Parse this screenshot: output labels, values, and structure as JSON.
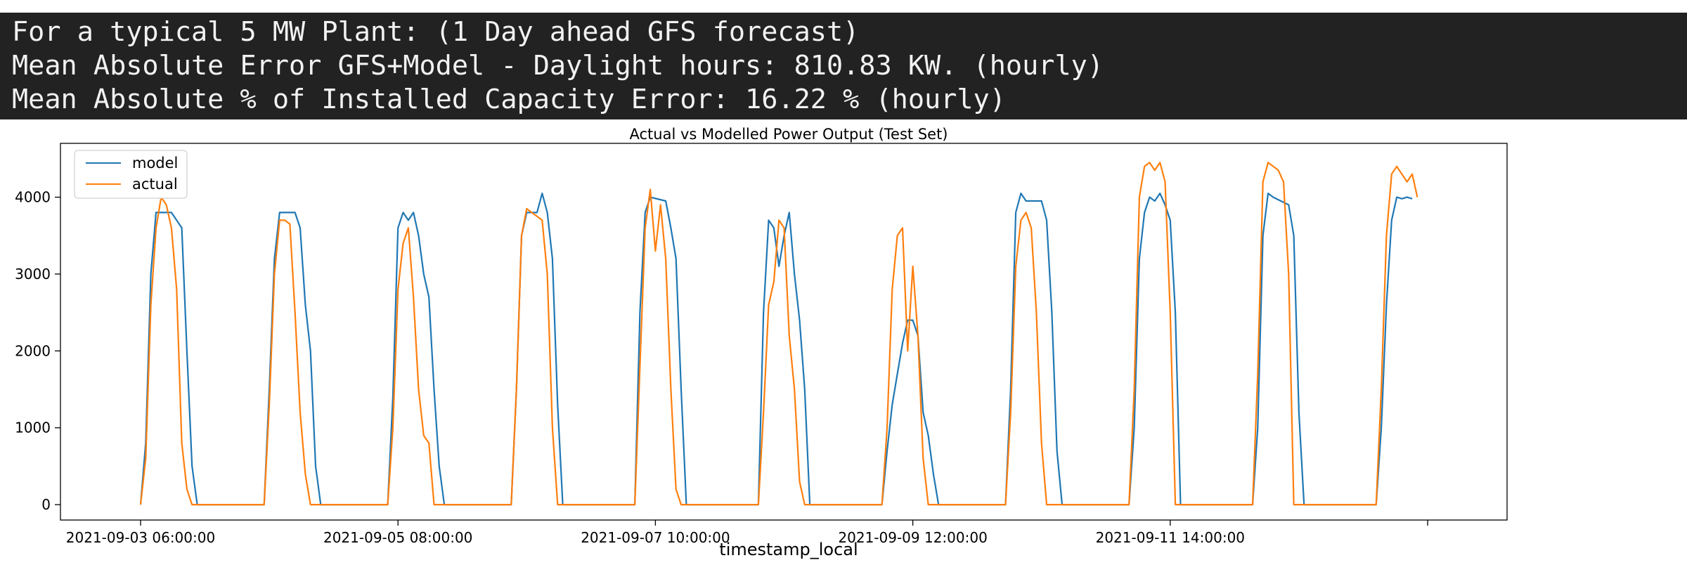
{
  "console": {
    "lines": [
      "For a typical 5 MW Plant: (1 Day ahead GFS forecast)",
      "Mean Absolute Error GFS+Model - Daylight hours: 810.83 KW. (hourly)",
      "Mean Absolute % of Installed Capacity Error: 16.22 % (hourly)"
    ]
  },
  "chart_data": {
    "type": "line",
    "title": "Actual vs Modelled Power Output (Test Set)",
    "xlabel": "timestamp_local",
    "ylabel": "",
    "x_start": "2021-09-03 06:00:00",
    "x_end": "2021-09-13 19:00:00",
    "x_ticks": [
      "2021-09-03 06:00:00",
      "2021-09-05 08:00:00",
      "2021-09-07 10:00:00",
      "2021-09-09 12:00:00",
      "2021-09-11 14:00:00",
      ""
    ],
    "y_ticks": [
      0,
      1000,
      2000,
      3000,
      4000
    ],
    "ylim": [
      -200,
      4700
    ],
    "grid": false,
    "legend": "upper-left",
    "colors": {
      "model": "#1f77b4",
      "actual": "#ff7f0e"
    },
    "series": [
      {
        "name": "model",
        "color": "#1f77b4",
        "points": [
          [
            "2021-09-03 06:00",
            0
          ],
          [
            "2021-09-03 07:00",
            800
          ],
          [
            "2021-09-03 08:00",
            3000
          ],
          [
            "2021-09-03 09:00",
            3800
          ],
          [
            "2021-09-03 12:00",
            3800
          ],
          [
            "2021-09-03 14:00",
            3600
          ],
          [
            "2021-09-03 15:00",
            2000
          ],
          [
            "2021-09-03 16:00",
            500
          ],
          [
            "2021-09-03 17:00",
            0
          ],
          [
            "2021-09-04 06:00",
            0
          ],
          [
            "2021-09-04 07:00",
            1500
          ],
          [
            "2021-09-04 08:00",
            3200
          ],
          [
            "2021-09-04 09:00",
            3800
          ],
          [
            "2021-09-04 12:00",
            3800
          ],
          [
            "2021-09-04 13:00",
            3600
          ],
          [
            "2021-09-04 14:00",
            2600
          ],
          [
            "2021-09-04 15:00",
            2000
          ],
          [
            "2021-09-04 16:00",
            500
          ],
          [
            "2021-09-04 17:00",
            0
          ],
          [
            "2021-09-05 06:00",
            0
          ],
          [
            "2021-09-05 07:00",
            1400
          ],
          [
            "2021-09-05 08:00",
            3600
          ],
          [
            "2021-09-05 09:00",
            3800
          ],
          [
            "2021-09-05 10:00",
            3700
          ],
          [
            "2021-09-05 11:00",
            3800
          ],
          [
            "2021-09-05 12:00",
            3500
          ],
          [
            "2021-09-05 13:00",
            3000
          ],
          [
            "2021-09-05 14:00",
            2700
          ],
          [
            "2021-09-05 15:00",
            1500
          ],
          [
            "2021-09-05 16:00",
            500
          ],
          [
            "2021-09-05 17:00",
            0
          ],
          [
            "2021-09-06 06:00",
            0
          ],
          [
            "2021-09-06 07:00",
            1500
          ],
          [
            "2021-09-06 08:00",
            3500
          ],
          [
            "2021-09-06 09:00",
            3800
          ],
          [
            "2021-09-06 11:00",
            3800
          ],
          [
            "2021-09-06 12:00",
            4050
          ],
          [
            "2021-09-06 13:00",
            3800
          ],
          [
            "2021-09-06 14:00",
            3200
          ],
          [
            "2021-09-06 15:00",
            1300
          ],
          [
            "2021-09-06 16:00",
            0
          ],
          [
            "2021-09-07 06:00",
            0
          ],
          [
            "2021-09-07 07:00",
            2500
          ],
          [
            "2021-09-07 08:00",
            3800
          ],
          [
            "2021-09-07 09:00",
            4000
          ],
          [
            "2021-09-07 12:00",
            3950
          ],
          [
            "2021-09-07 13:00",
            3600
          ],
          [
            "2021-09-07 14:00",
            3200
          ],
          [
            "2021-09-07 15:00",
            1500
          ],
          [
            "2021-09-07 16:00",
            0
          ],
          [
            "2021-09-08 06:00",
            0
          ],
          [
            "2021-09-08 07:00",
            2500
          ],
          [
            "2021-09-08 08:00",
            3700
          ],
          [
            "2021-09-08 09:00",
            3600
          ],
          [
            "2021-09-08 10:00",
            3100
          ],
          [
            "2021-09-08 11:00",
            3500
          ],
          [
            "2021-09-08 12:00",
            3800
          ],
          [
            "2021-09-08 13:00",
            3000
          ],
          [
            "2021-09-08 14:00",
            2400
          ],
          [
            "2021-09-08 15:00",
            1500
          ],
          [
            "2021-09-08 16:00",
            0
          ],
          [
            "2021-09-09 06:00",
            0
          ],
          [
            "2021-09-09 07:00",
            700
          ],
          [
            "2021-09-09 08:00",
            1300
          ],
          [
            "2021-09-09 09:00",
            1700
          ],
          [
            "2021-09-09 10:00",
            2100
          ],
          [
            "2021-09-09 11:00",
            2400
          ],
          [
            "2021-09-09 12:00",
            2400
          ],
          [
            "2021-09-09 13:00",
            2200
          ],
          [
            "2021-09-09 14:00",
            1200
          ],
          [
            "2021-09-09 15:00",
            900
          ],
          [
            "2021-09-09 16:00",
            400
          ],
          [
            "2021-09-09 17:00",
            0
          ],
          [
            "2021-09-10 06:00",
            0
          ],
          [
            "2021-09-10 07:00",
            1500
          ],
          [
            "2021-09-10 08:00",
            3800
          ],
          [
            "2021-09-10 09:00",
            4050
          ],
          [
            "2021-09-10 10:00",
            3950
          ],
          [
            "2021-09-10 13:00",
            3950
          ],
          [
            "2021-09-10 14:00",
            3700
          ],
          [
            "2021-09-10 15:00",
            2500
          ],
          [
            "2021-09-10 16:00",
            700
          ],
          [
            "2021-09-10 17:00",
            0
          ],
          [
            "2021-09-11 06:00",
            0
          ],
          [
            "2021-09-11 07:00",
            1000
          ],
          [
            "2021-09-11 08:00",
            3200
          ],
          [
            "2021-09-11 09:00",
            3800
          ],
          [
            "2021-09-11 10:00",
            4000
          ],
          [
            "2021-09-11 11:00",
            3950
          ],
          [
            "2021-09-11 12:00",
            4050
          ],
          [
            "2021-09-11 13:00",
            3900
          ],
          [
            "2021-09-11 14:00",
            3700
          ],
          [
            "2021-09-11 15:00",
            2500
          ],
          [
            "2021-09-11 16:00",
            0
          ],
          [
            "2021-09-12 06:00",
            0
          ],
          [
            "2021-09-12 07:00",
            1000
          ],
          [
            "2021-09-12 08:00",
            3500
          ],
          [
            "2021-09-12 09:00",
            4050
          ],
          [
            "2021-09-12 10:00",
            4000
          ],
          [
            "2021-09-12 13:00",
            3900
          ],
          [
            "2021-09-12 14:00",
            3500
          ],
          [
            "2021-09-12 15:00",
            1200
          ],
          [
            "2021-09-12 16:00",
            0
          ],
          [
            "2021-09-13 06:00",
            0
          ],
          [
            "2021-09-13 07:00",
            1000
          ],
          [
            "2021-09-13 08:00",
            2600
          ],
          [
            "2021-09-13 09:00",
            3700
          ],
          [
            "2021-09-13 10:00",
            4000
          ],
          [
            "2021-09-13 11:00",
            3980
          ],
          [
            "2021-09-13 12:00",
            4000
          ],
          [
            "2021-09-13 13:00",
            3980
          ]
        ]
      },
      {
        "name": "actual",
        "color": "#ff7f0e",
        "points": [
          [
            "2021-09-03 06:00",
            0
          ],
          [
            "2021-09-03 07:00",
            600
          ],
          [
            "2021-09-03 08:00",
            2600
          ],
          [
            "2021-09-03 09:00",
            3600
          ],
          [
            "2021-09-03 10:00",
            4000
          ],
          [
            "2021-09-03 11:00",
            3900
          ],
          [
            "2021-09-03 12:00",
            3600
          ],
          [
            "2021-09-03 13:00",
            2800
          ],
          [
            "2021-09-03 14:00",
            800
          ],
          [
            "2021-09-03 15:00",
            200
          ],
          [
            "2021-09-03 16:00",
            0
          ],
          [
            "2021-09-04 06:00",
            0
          ],
          [
            "2021-09-04 07:00",
            1300
          ],
          [
            "2021-09-04 08:00",
            3000
          ],
          [
            "2021-09-04 09:00",
            3700
          ],
          [
            "2021-09-04 10:00",
            3700
          ],
          [
            "2021-09-04 11:00",
            3650
          ],
          [
            "2021-09-04 12:00",
            2500
          ],
          [
            "2021-09-04 13:00",
            1200
          ],
          [
            "2021-09-04 14:00",
            400
          ],
          [
            "2021-09-04 15:00",
            0
          ],
          [
            "2021-09-05 06:00",
            0
          ],
          [
            "2021-09-05 07:00",
            1000
          ],
          [
            "2021-09-05 08:00",
            2800
          ],
          [
            "2021-09-05 09:00",
            3400
          ],
          [
            "2021-09-05 10:00",
            3600
          ],
          [
            "2021-09-05 11:00",
            2700
          ],
          [
            "2021-09-05 12:00",
            1500
          ],
          [
            "2021-09-05 13:00",
            900
          ],
          [
            "2021-09-05 14:00",
            800
          ],
          [
            "2021-09-05 15:00",
            0
          ],
          [
            "2021-09-06 06:00",
            0
          ],
          [
            "2021-09-06 07:00",
            1500
          ],
          [
            "2021-09-06 08:00",
            3500
          ],
          [
            "2021-09-06 09:00",
            3850
          ],
          [
            "2021-09-06 11:00",
            3750
          ],
          [
            "2021-09-06 12:00",
            3700
          ],
          [
            "2021-09-06 13:00",
            3000
          ],
          [
            "2021-09-06 14:00",
            1000
          ],
          [
            "2021-09-06 15:00",
            0
          ],
          [
            "2021-09-07 06:00",
            0
          ],
          [
            "2021-09-07 07:00",
            1800
          ],
          [
            "2021-09-07 08:00",
            3600
          ],
          [
            "2021-09-07 09:00",
            4100
          ],
          [
            "2021-09-07 10:00",
            3300
          ],
          [
            "2021-09-07 11:00",
            3900
          ],
          [
            "2021-09-07 12:00",
            3200
          ],
          [
            "2021-09-07 13:00",
            1500
          ],
          [
            "2021-09-07 14:00",
            200
          ],
          [
            "2021-09-07 15:00",
            0
          ],
          [
            "2021-09-08 06:00",
            0
          ],
          [
            "2021-09-08 07:00",
            1200
          ],
          [
            "2021-09-08 08:00",
            2600
          ],
          [
            "2021-09-08 09:00",
            2900
          ],
          [
            "2021-09-08 10:00",
            3700
          ],
          [
            "2021-09-08 11:00",
            3600
          ],
          [
            "2021-09-08 12:00",
            2200
          ],
          [
            "2021-09-08 13:00",
            1500
          ],
          [
            "2021-09-08 14:00",
            300
          ],
          [
            "2021-09-08 15:00",
            0
          ],
          [
            "2021-09-09 06:00",
            0
          ],
          [
            "2021-09-09 07:00",
            1000
          ],
          [
            "2021-09-09 08:00",
            2800
          ],
          [
            "2021-09-09 09:00",
            3500
          ],
          [
            "2021-09-09 10:00",
            3600
          ],
          [
            "2021-09-09 11:00",
            2000
          ],
          [
            "2021-09-09 12:00",
            3100
          ],
          [
            "2021-09-09 13:00",
            2200
          ],
          [
            "2021-09-09 14:00",
            600
          ],
          [
            "2021-09-09 15:00",
            0
          ],
          [
            "2021-09-10 06:00",
            0
          ],
          [
            "2021-09-10 07:00",
            1200
          ],
          [
            "2021-09-10 08:00",
            3100
          ],
          [
            "2021-09-10 09:00",
            3700
          ],
          [
            "2021-09-10 10:00",
            3800
          ],
          [
            "2021-09-10 11:00",
            3600
          ],
          [
            "2021-09-10 12:00",
            2500
          ],
          [
            "2021-09-10 13:00",
            800
          ],
          [
            "2021-09-10 14:00",
            0
          ],
          [
            "2021-09-11 06:00",
            0
          ],
          [
            "2021-09-11 07:00",
            1500
          ],
          [
            "2021-09-11 08:00",
            4000
          ],
          [
            "2021-09-11 09:00",
            4400
          ],
          [
            "2021-09-11 10:00",
            4450
          ],
          [
            "2021-09-11 11:00",
            4350
          ],
          [
            "2021-09-11 12:00",
            4450
          ],
          [
            "2021-09-11 13:00",
            4200
          ],
          [
            "2021-09-11 14:00",
            2500
          ],
          [
            "2021-09-11 15:00",
            0
          ],
          [
            "2021-09-12 06:00",
            0
          ],
          [
            "2021-09-12 07:00",
            1700
          ],
          [
            "2021-09-12 08:00",
            4200
          ],
          [
            "2021-09-12 09:00",
            4450
          ],
          [
            "2021-09-12 10:00",
            4400
          ],
          [
            "2021-09-12 11:00",
            4350
          ],
          [
            "2021-09-12 12:00",
            4200
          ],
          [
            "2021-09-12 13:00",
            3000
          ],
          [
            "2021-09-12 14:00",
            0
          ],
          [
            "2021-09-13 06:00",
            0
          ],
          [
            "2021-09-13 07:00",
            1500
          ],
          [
            "2021-09-13 08:00",
            3500
          ],
          [
            "2021-09-13 09:00",
            4300
          ],
          [
            "2021-09-13 10:00",
            4400
          ],
          [
            "2021-09-13 11:00",
            4300
          ],
          [
            "2021-09-13 12:00",
            4200
          ],
          [
            "2021-09-13 13:00",
            4300
          ],
          [
            "2021-09-13 14:00",
            4000
          ]
        ]
      }
    ]
  }
}
